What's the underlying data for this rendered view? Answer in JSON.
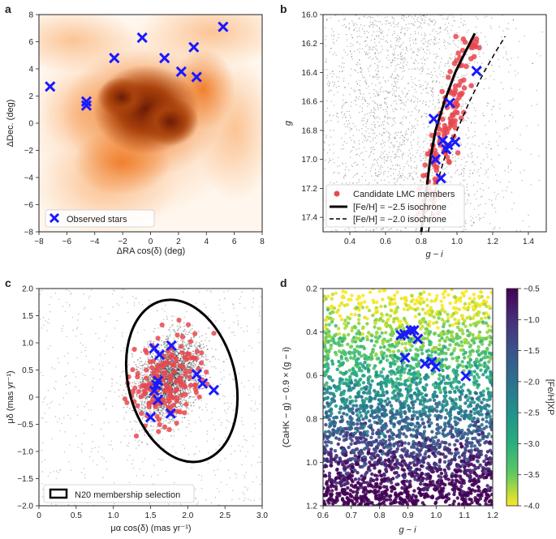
{
  "chart_data": [
    {
      "panel": "a",
      "type": "scatter",
      "background": "LMC stellar density map (orange)",
      "xlabel": "ΔRA cos(δ) (deg)",
      "ylabel": "ΔDec. (deg)",
      "xlim": [
        -8,
        8
      ],
      "ylim": [
        -8,
        8
      ],
      "xticks": [
        "−8",
        "−6",
        "−4",
        "−2",
        "0",
        "2",
        "4",
        "6",
        "8"
      ],
      "yticks": [
        "8",
        "6",
        "4",
        "2",
        "0",
        "−2",
        "−4",
        "−6",
        "−8"
      ],
      "legend": {
        "position": "bottom-left",
        "entries": [
          "Observed stars"
        ]
      },
      "series": [
        {
          "name": "Observed stars",
          "marker": "x",
          "color": "#1a1aff",
          "points": [
            [
              -7.2,
              2.7
            ],
            [
              -4.6,
              1.6
            ],
            [
              -4.6,
              1.3
            ],
            [
              -2.6,
              4.8
            ],
            [
              -0.6,
              6.3
            ],
            [
              1.0,
              4.8
            ],
            [
              2.2,
              3.8
            ],
            [
              3.1,
              5.6
            ],
            [
              3.3,
              3.4
            ],
            [
              5.2,
              7.1
            ]
          ]
        }
      ]
    },
    {
      "panel": "b",
      "type": "scatter",
      "xlabel": "g − i",
      "ylabel": "g",
      "xlim": [
        0.25,
        1.5
      ],
      "ylim": [
        17.5,
        16.0
      ],
      "xticks": [
        "0.4",
        "0.6",
        "0.8",
        "1.0",
        "1.2",
        "1.4"
      ],
      "yticks": [
        "16.0",
        "16.2",
        "16.4",
        "16.6",
        "16.8",
        "17.0",
        "17.2",
        "17.4"
      ],
      "legend": {
        "position": "bottom-left",
        "entries": [
          "Candidate LMC members",
          "[Fe/H] = −2.5 isochrone",
          "[Fe/H] = −2.0 isochrone"
        ]
      },
      "series": [
        {
          "name": "Candidate LMC members",
          "marker": "circle",
          "color": "#e8484f"
        },
        {
          "name": "[Fe/H] = −2.5 isochrone",
          "type": "line",
          "style": "solid",
          "points": [
            [
              0.8,
              17.5
            ],
            [
              0.82,
              17.3
            ],
            [
              0.85,
              17.0
            ],
            [
              0.88,
              16.8
            ],
            [
              0.93,
              16.6
            ],
            [
              0.99,
              16.4
            ],
            [
              1.05,
              16.25
            ],
            [
              1.1,
              16.13
            ]
          ]
        },
        {
          "name": "[Fe/H] = −2.0 isochrone",
          "type": "line",
          "style": "dashed",
          "points": [
            [
              0.84,
              17.5
            ],
            [
              0.88,
              17.2
            ],
            [
              0.94,
              16.95
            ],
            [
              1.0,
              16.8
            ],
            [
              1.07,
              16.6
            ],
            [
              1.15,
              16.4
            ],
            [
              1.22,
              16.25
            ],
            [
              1.27,
              16.15
            ]
          ]
        },
        {
          "name": "Observed stars",
          "marker": "x",
          "color": "#1a1aff",
          "points": [
            [
              1.11,
              16.39
            ],
            [
              0.96,
              16.61
            ],
            [
              0.87,
              16.72
            ],
            [
              0.92,
              16.87
            ],
            [
              0.99,
              16.88
            ],
            [
              0.95,
              16.9
            ],
            [
              0.94,
              16.93
            ],
            [
              0.88,
              17.0
            ],
            [
              0.91,
              17.13
            ]
          ]
        }
      ]
    },
    {
      "panel": "c",
      "type": "scatter",
      "xlabel": "μα cos(δ) (mas yr⁻¹)",
      "ylabel": "μδ (mas yr⁻¹)",
      "xlim": [
        0,
        3.0
      ],
      "ylim": [
        -2.0,
        2.0
      ],
      "xticks": [
        "0",
        "0.5",
        "1.0",
        "1.5",
        "2.0",
        "2.5",
        "3.0"
      ],
      "yticks": [
        "2.0",
        "1.5",
        "1.0",
        "0.5",
        "0",
        "−0.5",
        "−1.0",
        "−1.5",
        "−2.0"
      ],
      "legend": {
        "position": "bottom-left",
        "entries": [
          "N20 membership selection"
        ]
      },
      "series": [
        {
          "name": "Observed stars",
          "marker": "x",
          "color": "#1a1aff",
          "points": [
            [
              1.55,
              0.9
            ],
            [
              1.78,
              0.95
            ],
            [
              1.62,
              0.78
            ],
            [
              1.6,
              0.3
            ],
            [
              1.58,
              0.22
            ],
            [
              1.55,
              0.12
            ],
            [
              1.6,
              -0.05
            ],
            [
              2.12,
              0.42
            ],
            [
              2.2,
              0.25
            ],
            [
              2.35,
              0.13
            ],
            [
              1.77,
              -0.3
            ],
            [
              1.5,
              -0.37
            ]
          ]
        }
      ]
    },
    {
      "panel": "d",
      "type": "scatter",
      "xlabel": "g − i",
      "ylabel": "(CaHK − g) − 0.9 × (g − i)",
      "xlim": [
        0.6,
        1.2
      ],
      "ylim": [
        1.2,
        0.2
      ],
      "xticks": [
        "0.6",
        "0.7",
        "0.8",
        "0.9",
        "1.0",
        "1.1",
        "1.2"
      ],
      "yticks": [
        "0.2",
        "0.4",
        "0.6",
        "0.8",
        "1.0",
        "1.2"
      ],
      "colorbar": {
        "label": "[Fe/H]XP",
        "range": [
          -4.0,
          -0.5
        ],
        "ticks": [
          "−0.5",
          "−1.0",
          "−1.5",
          "−2.0",
          "−2.5",
          "−3.0",
          "−3.5",
          "−4.0"
        ]
      },
      "series": [
        {
          "name": "Observed stars",
          "marker": "x",
          "color": "#1a1aff",
          "points": [
            [
              0.875,
              0.415
            ],
            [
              0.888,
              0.41
            ],
            [
              0.91,
              0.393
            ],
            [
              0.922,
              0.392
            ],
            [
              0.935,
              0.432
            ],
            [
              0.89,
              0.518
            ],
            [
              0.96,
              0.546
            ],
            [
              0.985,
              0.537
            ],
            [
              0.998,
              0.56
            ],
            [
              1.105,
              0.603
            ]
          ]
        }
      ]
    }
  ]
}
